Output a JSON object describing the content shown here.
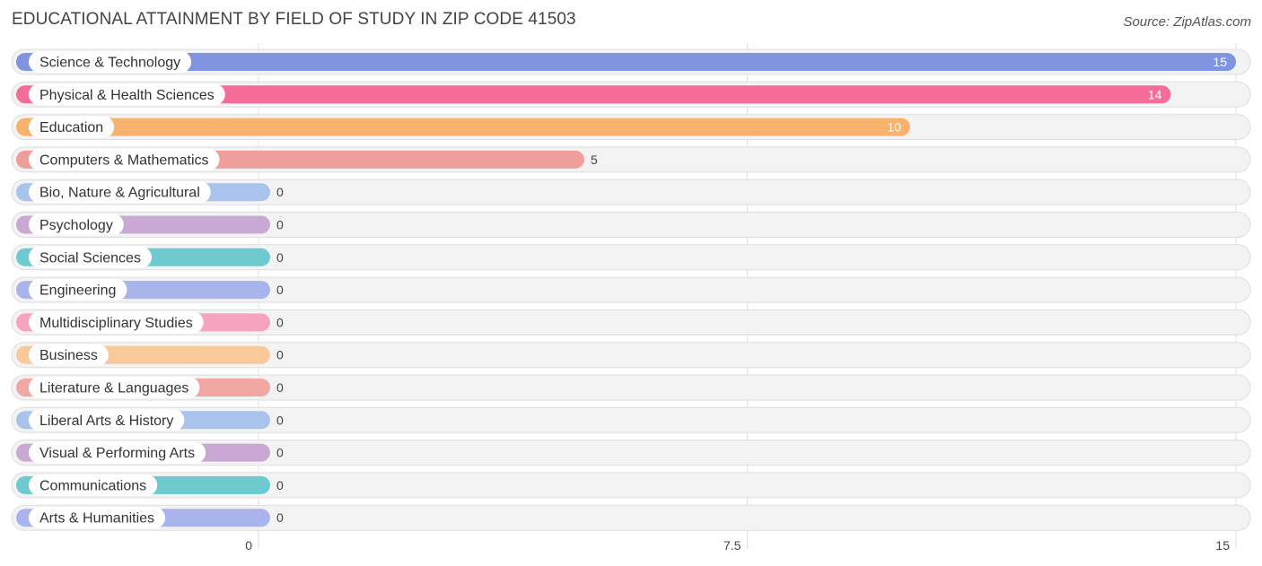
{
  "chart_data": {
    "type": "bar",
    "orientation": "horizontal",
    "title": "EDUCATIONAL ATTAINMENT BY FIELD OF STUDY IN ZIP CODE 41503",
    "source": "Source: ZipAtlas.com",
    "categories": [
      "Science & Technology",
      "Physical & Health Sciences",
      "Education",
      "Computers & Mathematics",
      "Bio, Nature & Agricultural",
      "Psychology",
      "Social Sciences",
      "Engineering",
      "Multidisciplinary Studies",
      "Business",
      "Literature & Languages",
      "Liberal Arts & History",
      "Visual & Performing Arts",
      "Communications",
      "Arts & Humanities"
    ],
    "values": [
      15,
      14,
      10,
      5,
      0,
      0,
      0,
      0,
      0,
      0,
      0,
      0,
      0,
      0,
      0
    ],
    "colors": [
      "#7f95e0",
      "#f46d99",
      "#f9b26d",
      "#ee9d9a",
      "#a9c4ec",
      "#c9a9d4",
      "#6fcad0",
      "#aab4ec",
      "#f6a3c0",
      "#f9c99a",
      "#f1a8a5",
      "#a9c4ec",
      "#c9a9d4",
      "#6fcad0",
      "#aab4ec"
    ],
    "xlim": [
      0,
      15
    ],
    "xticks": [
      0,
      7.5,
      15
    ],
    "xtick_labels": [
      "0",
      "7.5",
      "15"
    ],
    "grid": true
  }
}
